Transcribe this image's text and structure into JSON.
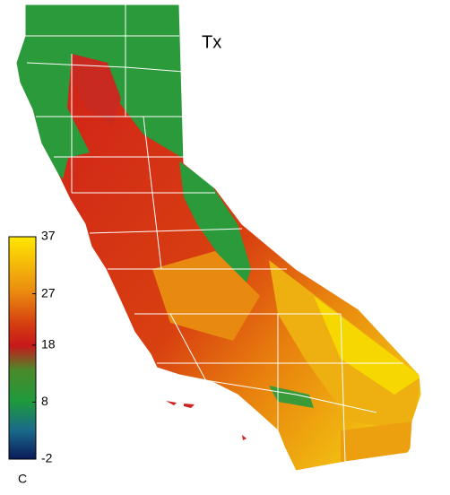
{
  "title": "Tx",
  "colorbar": {
    "ticks": [
      37,
      27,
      18,
      8,
      -2
    ],
    "range": [
      -2,
      37
    ],
    "unit": "C"
  }
}
